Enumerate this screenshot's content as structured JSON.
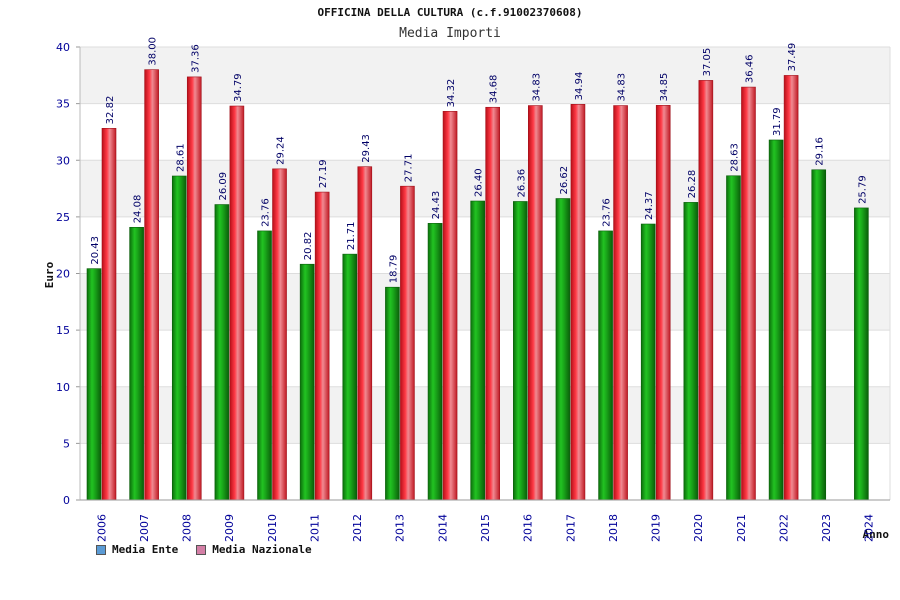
{
  "header": {
    "title": "OFFICINA DELLA CULTURA (c.f.91002370608)",
    "subtitle": "Media Importi"
  },
  "legend": {
    "items": [
      {
        "label": "Media Ente",
        "color": "#5b9bd5"
      },
      {
        "label": "Media Nazionale",
        "color": "#d47fa6"
      }
    ]
  },
  "colors": {
    "ente_bar": "#12a012",
    "nazionale_bar": "#e0202c",
    "axis_label": "#000099",
    "value_label": "#000066",
    "band": "#f2f2f2"
  },
  "chart_data": {
    "type": "bar",
    "title": "Media Importi",
    "xlabel": "Anno",
    "ylabel": "Euro",
    "ylim": [
      0,
      40
    ],
    "yticks": [
      0,
      5,
      10,
      15,
      20,
      25,
      30,
      35,
      40
    ],
    "categories": [
      "2006",
      "2007",
      "2008",
      "2009",
      "2010",
      "2011",
      "2012",
      "2013",
      "2014",
      "2015",
      "2016",
      "2017",
      "2018",
      "2019",
      "2020",
      "2021",
      "2022",
      "2023",
      "2024"
    ],
    "series": [
      {
        "name": "Media Ente",
        "values": [
          20.43,
          24.08,
          28.61,
          26.09,
          23.76,
          20.82,
          21.71,
          18.79,
          24.43,
          26.4,
          26.36,
          26.62,
          23.76,
          24.37,
          26.28,
          28.63,
          31.79,
          29.16,
          25.79
        ],
        "labels": [
          "20.43",
          "24.08",
          "28.61",
          "26.09",
          "23.76",
          "20.82",
          "21.71",
          "18.79",
          "24.43",
          "26.40",
          "26.36",
          "26.62",
          "23.76",
          "24.37",
          "26.28",
          "28.63",
          "31.79",
          "29.16",
          "25.79"
        ]
      },
      {
        "name": "Media Nazionale",
        "values": [
          32.82,
          38.0,
          37.36,
          34.79,
          29.24,
          27.19,
          29.43,
          27.71,
          34.32,
          34.68,
          34.83,
          34.94,
          34.83,
          34.85,
          37.05,
          36.46,
          37.49,
          null,
          null
        ],
        "labels": [
          "32.82",
          "38.00",
          "37.36",
          "34.79",
          "29.24",
          "27.19",
          "29.43",
          "27.71",
          "34.32",
          "34.68",
          "34.83",
          "34.94",
          "34.83",
          "34.85",
          "37.05",
          "36.46",
          "37.49",
          "",
          ""
        ]
      }
    ],
    "grid": true,
    "legend_position": "bottom-left"
  }
}
